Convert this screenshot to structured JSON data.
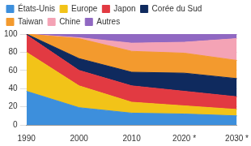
{
  "chart_data": {
    "type": "area",
    "stacked": true,
    "legend": "top",
    "grid": true,
    "categories": [
      "1990",
      "2000",
      "2010",
      "2020 *",
      "2030 *"
    ],
    "series": [
      {
        "name": "États-Unis",
        "color": "#3d8fdc",
        "values": [
          37,
          19,
          13,
          12,
          10
        ]
      },
      {
        "name": "Europe",
        "color": "#f2c318",
        "values": [
          43,
          24,
          12,
          9,
          7
        ]
      },
      {
        "name": "Japon",
        "color": "#e23a42",
        "values": [
          19,
          17,
          18,
          16,
          14
        ]
      },
      {
        "name": "Corée du Sud",
        "color": "#0f2a5e",
        "values": [
          1,
          13,
          15,
          20,
          20
        ]
      },
      {
        "name": "Taiwan",
        "color": "#f39a2e",
        "values": [
          0,
          22,
          23,
          22,
          20
        ]
      },
      {
        "name": "Chine",
        "color": "#f4a3b5",
        "values": [
          0,
          1,
          9,
          12,
          24
        ]
      },
      {
        "name": "Autres",
        "color": "#9068c2",
        "values": [
          0,
          4,
          10,
          9,
          5
        ]
      }
    ],
    "ylim": [
      0,
      100
    ],
    "yticks": [
      0,
      20,
      40,
      60,
      80,
      100
    ]
  }
}
